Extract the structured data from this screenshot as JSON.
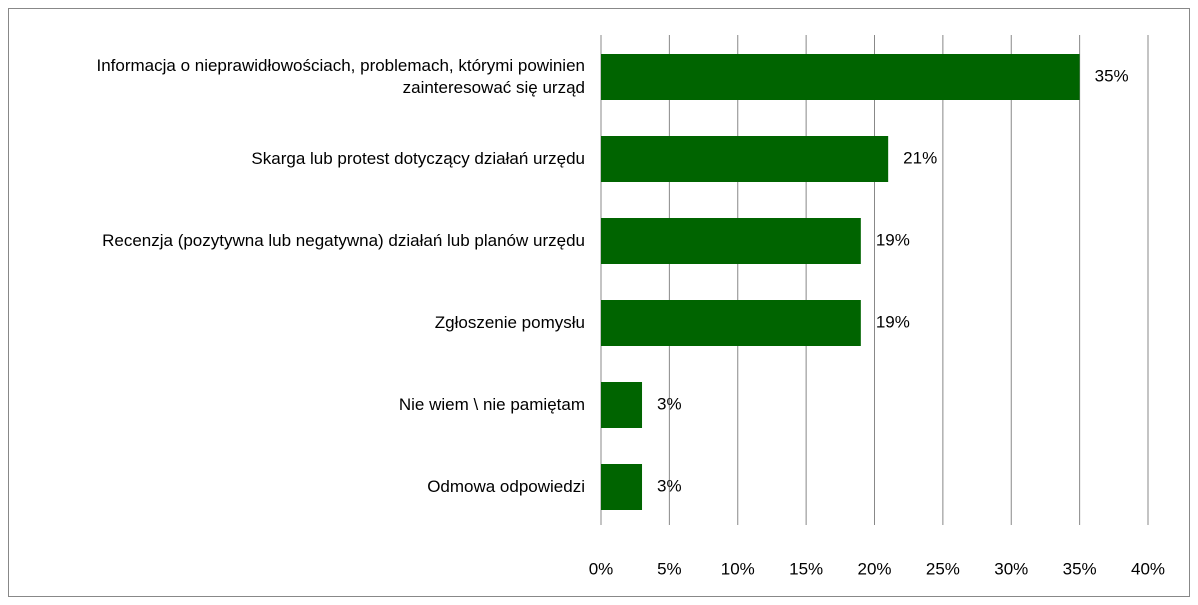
{
  "chart_data": {
    "type": "bar",
    "orientation": "horizontal",
    "categories": [
      "Informacja o nieprawidłowościach, problemach, którymi powinien zainteresować się urząd",
      "Skarga lub protest dotyczący działań urzędu",
      "Recenzja (pozytywna lub negatywna) działań lub planów urzędu",
      "Zgłoszenie pomysłu",
      "Nie wiem \\ nie pamiętam",
      "Odmowa odpowiedzi"
    ],
    "values": [
      35,
      21,
      19,
      19,
      3,
      3
    ],
    "value_labels": [
      "35%",
      "21%",
      "19%",
      "19%",
      "3%",
      "3%"
    ],
    "color": "#006400",
    "xlim": [
      0,
      40
    ],
    "xticks": [
      {
        "value": 0,
        "label": "0%"
      },
      {
        "value": 5,
        "label": "5%"
      },
      {
        "value": 10,
        "label": "10%"
      },
      {
        "value": 15,
        "label": "15%"
      },
      {
        "value": 20,
        "label": "20%"
      },
      {
        "value": 25,
        "label": "25%"
      },
      {
        "value": 30,
        "label": "30%"
      },
      {
        "value": 35,
        "label": "35%"
      },
      {
        "value": 40,
        "label": "40%"
      }
    ],
    "grid": true
  }
}
